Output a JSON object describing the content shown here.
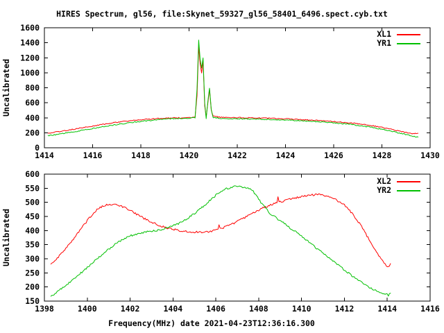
{
  "figure": {
    "background": "#ffffff",
    "frame_color": "#000000",
    "text_color": "#000000"
  },
  "chart_data": [
    {
      "type": "line",
      "title": "HIRES Spectrum, gl56, file:Skynet_59327_gl56_58401_6496.spect.cyb.txt",
      "ylabel": "Uncalibrated",
      "xlim": [
        1414,
        1430
      ],
      "ylim": [
        0,
        1600
      ],
      "xticks": [
        1414,
        1416,
        1418,
        1420,
        1422,
        1424,
        1426,
        1428,
        1430
      ],
      "yticks": [
        0,
        200,
        400,
        600,
        800,
        1000,
        1200,
        1400,
        1600
      ],
      "grid": false,
      "legend_position": "top-right-inside",
      "series": [
        {
          "name": "XL1",
          "color": "#ff0000",
          "x": [
            1414.15,
            1414.8,
            1415.5,
            1416.2,
            1417,
            1417.8,
            1418.6,
            1419.4,
            1420,
            1420.25,
            1420.33,
            1420.4,
            1420.46,
            1420.52,
            1420.58,
            1420.65,
            1420.71,
            1420.78,
            1420.85,
            1420.92,
            1421,
            1421.3,
            1422,
            1423,
            1424,
            1425,
            1426,
            1426.8,
            1427.6,
            1428.3,
            1428.9,
            1429.3,
            1429.5
          ],
          "y": [
            195,
            225,
            262,
            300,
            340,
            368,
            388,
            398,
            400,
            410,
            700,
            1340,
            1120,
            1000,
            1160,
            560,
            415,
            590,
            775,
            500,
            420,
            406,
            402,
            396,
            385,
            370,
            350,
            328,
            296,
            252,
            210,
            188,
            193
          ]
        },
        {
          "name": "YR1",
          "color": "#00c000",
          "x": [
            1414.15,
            1414.8,
            1415.5,
            1416.2,
            1417,
            1417.8,
            1418.6,
            1419.4,
            1420,
            1420.25,
            1420.33,
            1420.4,
            1420.46,
            1420.52,
            1420.58,
            1420.65,
            1420.71,
            1420.78,
            1420.85,
            1420.92,
            1421,
            1421.3,
            1422,
            1423,
            1424,
            1425,
            1426,
            1426.8,
            1427.6,
            1428.3,
            1428.9,
            1429.3,
            1429.5
          ],
          "y": [
            160,
            192,
            228,
            268,
            310,
            345,
            372,
            390,
            395,
            402,
            780,
            1430,
            1180,
            1060,
            1200,
            600,
            390,
            610,
            800,
            510,
            405,
            392,
            388,
            380,
            369,
            355,
            333,
            307,
            272,
            228,
            185,
            152,
            142
          ]
        }
      ]
    },
    {
      "type": "line",
      "xlabel": "Frequency(MHz) date 2021-04-23T12:36:16.300",
      "ylabel": "Uncalibrated",
      "xlim": [
        1398,
        1416
      ],
      "ylim": [
        150,
        600
      ],
      "xticks": [
        1398,
        1400,
        1402,
        1404,
        1406,
        1408,
        1410,
        1412,
        1414,
        1416
      ],
      "yticks": [
        150,
        200,
        250,
        300,
        350,
        400,
        450,
        500,
        550,
        600
      ],
      "grid": false,
      "legend_position": "top-right-inside",
      "series": [
        {
          "name": "XL2",
          "color": "#ff0000",
          "x": [
            1398.3,
            1399,
            1399.6,
            1400.1,
            1400.5,
            1400.9,
            1401.3,
            1401.8,
            1402.3,
            1402.8,
            1403.3,
            1403.8,
            1404.3,
            1404.8,
            1405.3,
            1405.8,
            1406.1,
            1406.15,
            1406.2,
            1406.6,
            1407,
            1407.4,
            1407.8,
            1408.2,
            1408.6,
            1408.85,
            1408.9,
            1408.95,
            1409.2,
            1409.6,
            1410,
            1410.4,
            1410.8,
            1411.2,
            1411.6,
            1412,
            1412.4,
            1412.8,
            1413.2,
            1413.6,
            1413.9,
            1414.05,
            1414.15
          ],
          "y": [
            278,
            335,
            395,
            445,
            478,
            492,
            494,
            480,
            458,
            437,
            420,
            408,
            400,
            396,
            394,
            397,
            404,
            418,
            405,
            418,
            432,
            448,
            464,
            480,
            492,
            498,
            522,
            500,
            506,
            514,
            521,
            526,
            527,
            522,
            510,
            490,
            458,
            414,
            362,
            310,
            280,
            272,
            283
          ]
        },
        {
          "name": "YR2",
          "color": "#00c000",
          "x": [
            1398.3,
            1399,
            1399.6,
            1400.2,
            1400.8,
            1401.4,
            1402,
            1402.6,
            1403.2,
            1403.8,
            1404.4,
            1405,
            1405.5,
            1406,
            1406.4,
            1406.9,
            1407.3,
            1407.7,
            1408.1,
            1408.5,
            1409,
            1409.5,
            1410,
            1410.5,
            1411,
            1411.5,
            1412,
            1412.5,
            1413,
            1413.4,
            1413.8,
            1414.05,
            1414.15
          ],
          "y": [
            167,
            205,
            243,
            282,
            322,
            357,
            381,
            393,
            400,
            410,
            430,
            460,
            492,
            525,
            546,
            556,
            555,
            544,
            500,
            462,
            435,
            408,
            381,
            349,
            320,
            290,
            260,
            232,
            206,
            190,
            178,
            171,
            178
          ]
        }
      ]
    }
  ]
}
